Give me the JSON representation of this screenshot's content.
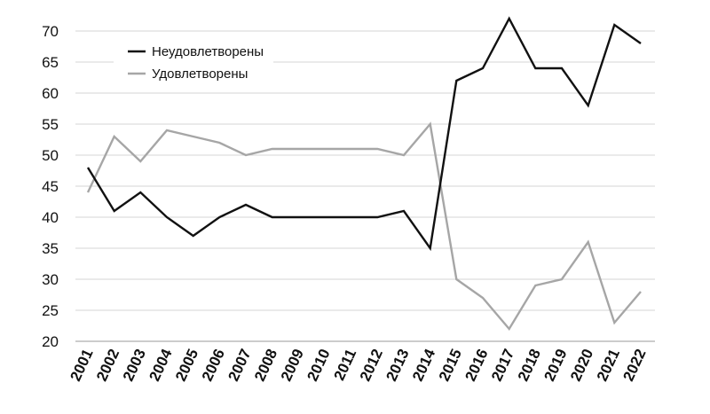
{
  "chart_data": {
    "type": "line",
    "title": "",
    "xlabel": "",
    "ylabel": "",
    "x": [
      "2001",
      "2002",
      "2003",
      "2004",
      "2005",
      "2006",
      "2007",
      "2008",
      "2009",
      "2010",
      "2011",
      "2012",
      "2013",
      "2014",
      "2015",
      "2016",
      "2017",
      "2018",
      "2019",
      "2020",
      "2021",
      "2022"
    ],
    "ylim": [
      20,
      70
    ],
    "yticks": [
      20,
      25,
      30,
      35,
      40,
      45,
      50,
      55,
      60,
      65,
      70
    ],
    "grid": "horizontal",
    "legend_position": "top-left",
    "series": [
      {
        "name": "Неудовлетворены",
        "color": "#111111",
        "values": [
          48,
          41,
          44,
          40,
          37,
          40,
          42,
          40,
          40,
          40,
          40,
          40,
          41,
          35,
          62,
          64,
          72,
          64,
          64,
          58,
          71,
          68
        ]
      },
      {
        "name": "Удовлетворены",
        "color": "#a6a6a6",
        "values": [
          44,
          53,
          49,
          54,
          53,
          52,
          50,
          51,
          51,
          51,
          51,
          51,
          50,
          55,
          30,
          27,
          22,
          29,
          30,
          36,
          23,
          28
        ]
      }
    ]
  }
}
